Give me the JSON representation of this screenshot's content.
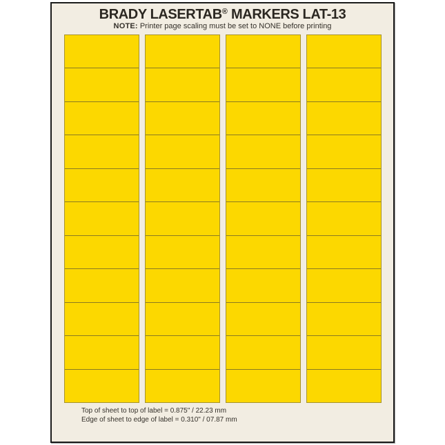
{
  "page": {
    "background": "#FFFFFF"
  },
  "sheet": {
    "title_brand": "BRADY LASERTAB",
    "title_reg_mark": "®",
    "title_rest": " MARKERS LAT-13",
    "note_label": "NOTE:",
    "note_text": "Printer page scaling must be set to NONE before printing",
    "footer_line1": "Top of sheet to top of label  =  0.875\" / 22.23 mm",
    "footer_line2": "Edge of sheet to edge of label  =  0.310\" / 07.87 mm",
    "background": "#F2EDE2",
    "border_color": "#1B1B1B"
  },
  "labels": {
    "columns": 4,
    "rows_per_column": 11,
    "total_labels": 44,
    "fill_color": "#FCD800",
    "divider_color": "#8A7B22",
    "outline_color": "#A5922D"
  }
}
